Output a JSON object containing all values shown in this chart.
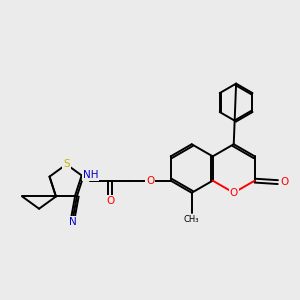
{
  "background_color": "#ebebeb",
  "bond_color": "#000000",
  "bond_width": 1.4,
  "atom_colors": {
    "S": "#c8b400",
    "N": "#0000cc",
    "O": "#ff0000",
    "C": "#000000"
  },
  "font_size": 7.5,
  "fig_width": 3.0,
  "fig_height": 3.0,
  "xlim": [
    0,
    10
  ],
  "ylim": [
    0,
    10
  ]
}
